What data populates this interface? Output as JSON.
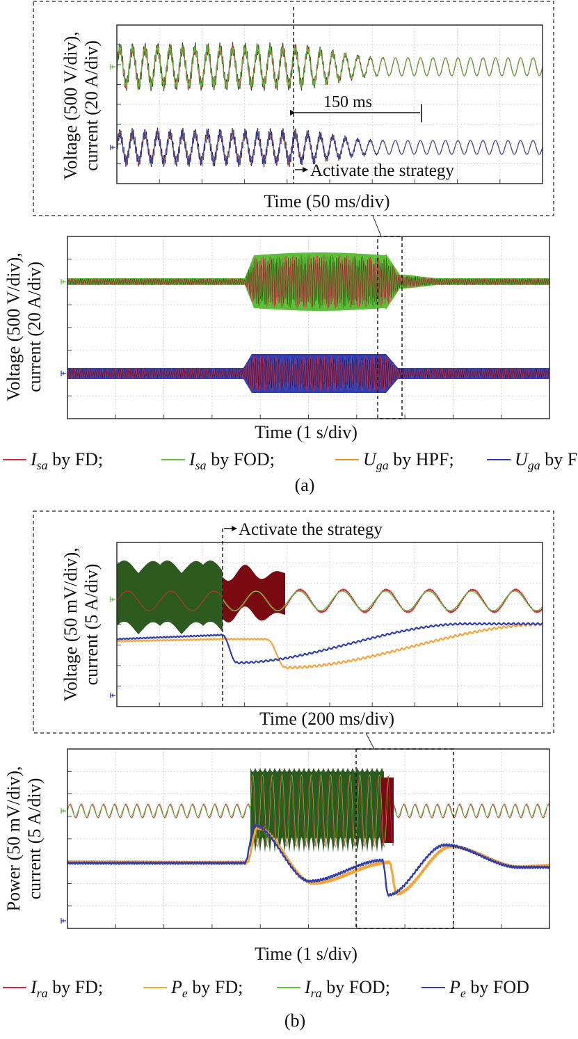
{
  "colors": {
    "FD_current": "#d62839",
    "FOD_current": "#5bbf3a",
    "HPF": "#f08a24",
    "FOD_blue": "#2f3fb0",
    "orange": "#f4a43a",
    "dark_red": "#7a0a12",
    "dark_green": "#2c5a1f",
    "dark_purple": "#2a2055"
  },
  "panel_a": {
    "label": "(a)",
    "legend": [
      {
        "var": "I",
        "sub": "sa",
        "text": " by FD;",
        "color": "#d62839"
      },
      {
        "var": "I",
        "sub": "sa",
        "text": " by FOD;",
        "color": "#5bbf3a"
      },
      {
        "var": "U",
        "sub": "ga",
        "text": " by HPF;",
        "color": "#f08a24"
      },
      {
        "var": "U",
        "sub": "ga",
        "text": " by FOD",
        "color": "#2f3fb0"
      }
    ],
    "zoom": {
      "ylabel_line1": "Voltage (500 V/div),",
      "ylabel_line2": "current (20 A/div)",
      "xlabel": "Time (50 ms/div)",
      "annotation_interval": "150 ms",
      "annotation_event": "Activate the strategy"
    },
    "main": {
      "ylabel_line1": "Voltage (500 V/div),",
      "ylabel_line2": "current (20 A/div)",
      "xlabel": "Time (1 s/div)"
    }
  },
  "panel_b": {
    "label": "(b)",
    "legend": [
      {
        "var": "I",
        "sub": "ra",
        "text": " by FD;",
        "color": "#d62839"
      },
      {
        "var": "P",
        "sub": "e",
        "text": " by FD;",
        "color": "#f4a43a"
      },
      {
        "var": "I",
        "sub": "ra",
        "text": " by FOD;",
        "color": "#5bbf3a"
      },
      {
        "var": "P",
        "sub": "e",
        "text": " by FOD",
        "color": "#2f3fb0"
      }
    ],
    "zoom": {
      "ylabel_line1": "Voltage (50 mV/div),",
      "ylabel_line2": "current (5 A/div)",
      "xlabel": "Time (200 ms/div)",
      "annotation_event": "Activate the strategy"
    },
    "main": {
      "ylabel_line1": "Power (50 mV/div),",
      "ylabel_line2": "current (5 A/div)",
      "xlabel": "Time (1 s/div)"
    }
  },
  "chart_data": [
    {
      "type": "line",
      "title": "",
      "xlabel": "Time (50 ms/div)",
      "ylabel": "Voltage (500 V/div), current (20 A/div)",
      "x_divisions": 10,
      "y_divisions": 8,
      "grid": true,
      "series": [
        {
          "name": "Isa by FD",
          "color": "#d62839"
        },
        {
          "name": "Isa by FOD",
          "color": "#5bbf3a"
        },
        {
          "name": "Uga by HPF",
          "color": "#f08a24"
        },
        {
          "name": "Uga by FOD",
          "color": "#2f3fb0"
        }
      ],
      "annotations": [
        {
          "text": "150 ms"
        },
        {
          "text": "Activate the strategy",
          "x_div": 4.2
        }
      ]
    },
    {
      "type": "line",
      "title": "",
      "xlabel": "Time (1 s/div)",
      "ylabel": "Voltage (500 V/div), current (20 A/div)",
      "x_divisions": 10,
      "y_divisions": 8,
      "grid": true,
      "series": [
        {
          "name": "Isa by FD",
          "color": "#d62839"
        },
        {
          "name": "Isa by FOD",
          "color": "#5bbf3a"
        },
        {
          "name": "Uga by HPF",
          "color": "#f08a24"
        },
        {
          "name": "Uga by FOD",
          "color": "#2f3fb0"
        }
      ]
    },
    {
      "type": "line",
      "title": "",
      "xlabel": "Time (200 ms/div)",
      "ylabel": "Voltage (50 mV/div), current (5 A/div)",
      "x_divisions": 10,
      "y_divisions": 8,
      "grid": true,
      "series": [
        {
          "name": "Ira by FD",
          "color": "#d62839"
        },
        {
          "name": "Pe by FD",
          "color": "#f4a43a"
        },
        {
          "name": "Ira by FOD",
          "color": "#5bbf3a"
        },
        {
          "name": "Pe by FOD",
          "color": "#2f3fb0"
        }
      ],
      "annotations": [
        {
          "text": "Activate the strategy",
          "x_div": 2.5
        }
      ]
    },
    {
      "type": "line",
      "title": "",
      "xlabel": "Time (1 s/div)",
      "ylabel": "Power (50 mV/div), current (5 A/div)",
      "x_divisions": 10,
      "y_divisions": 8,
      "grid": true,
      "series": [
        {
          "name": "Ira by FD",
          "color": "#d62839"
        },
        {
          "name": "Pe by FD",
          "color": "#f4a43a"
        },
        {
          "name": "Ira by FOD",
          "color": "#5bbf3a"
        },
        {
          "name": "Pe by FOD",
          "color": "#2f3fb0"
        }
      ]
    }
  ]
}
